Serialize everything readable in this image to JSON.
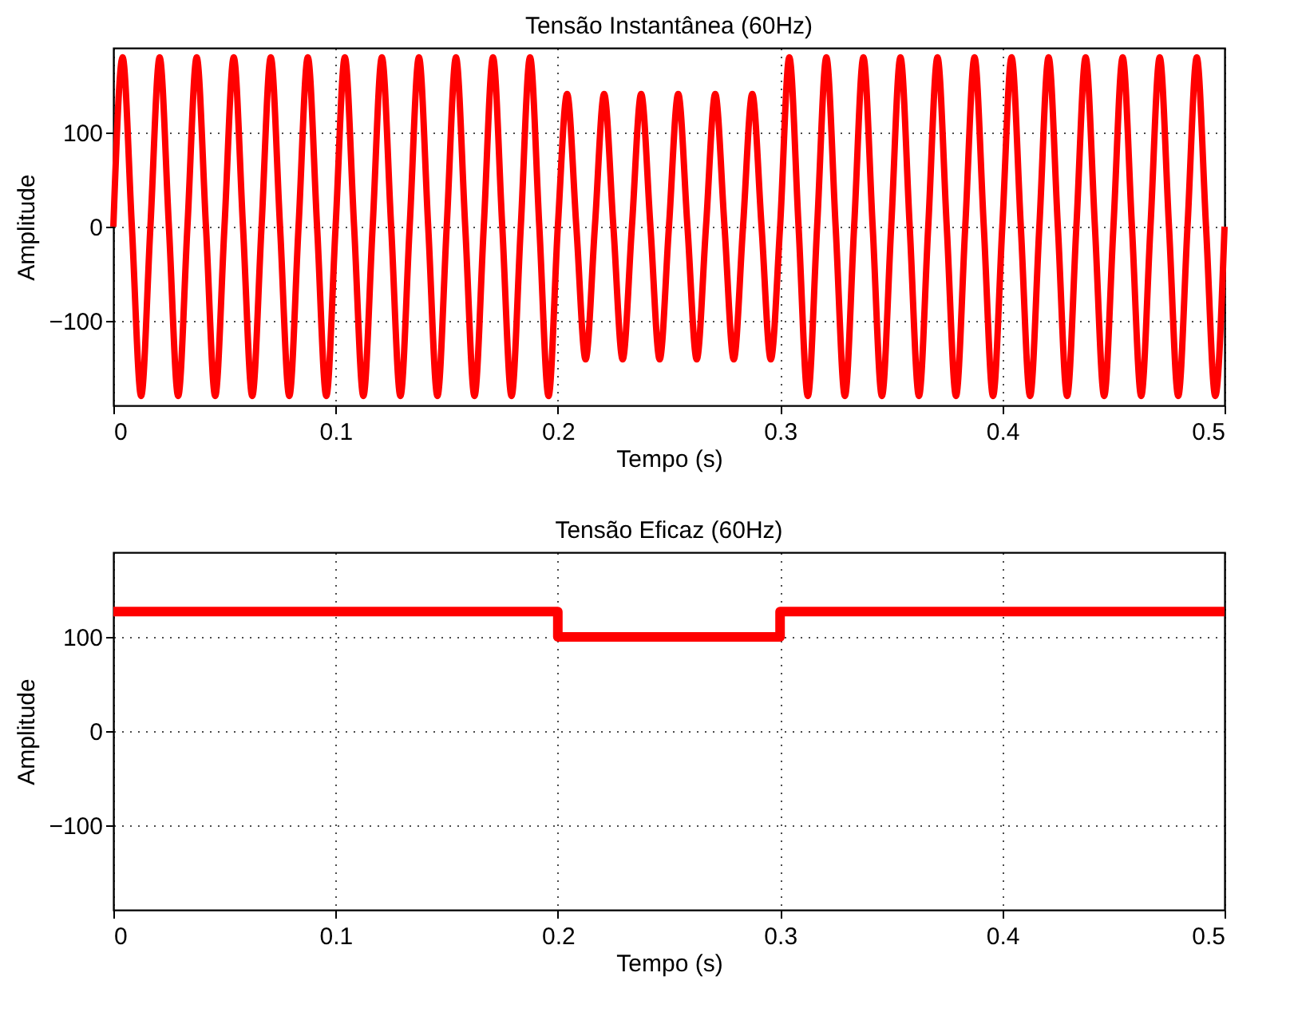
{
  "chart_data": [
    {
      "type": "line",
      "title": "Tensão Instantânea (60Hz)",
      "xlabel": "Tempo (s)",
      "ylabel": "Amplitude",
      "xlim": [
        0,
        0.5
      ],
      "xticks": [
        0,
        0.1,
        0.2,
        0.3,
        0.4,
        0.5
      ],
      "ylim": [
        -190,
        190
      ],
      "yticks": [
        -100,
        0,
        100
      ],
      "grid": true,
      "line_style": "solid",
      "series": [
        {
          "color": "#ff0000",
          "x": [
            0,
            0.00417,
            0.00833,
            0.0125,
            0.01667,
            0.02083,
            0.025,
            0.02917,
            0.03333,
            0.0375,
            0.04167,
            0.04583,
            0.05,
            0.05417,
            0.05833,
            0.0625,
            0.06667,
            0.07083,
            0.075,
            0.07917,
            0.08333,
            0.0875,
            0.09167,
            0.09583,
            0.1,
            0.10417,
            0.10833,
            0.1125,
            0.11667,
            0.12083,
            0.125,
            0.12917,
            0.13333,
            0.1375,
            0.14167,
            0.14583,
            0.15,
            0.15417,
            0.15833,
            0.1625,
            0.16667,
            0.17083,
            0.175,
            0.17917,
            0.18333,
            0.1875,
            0.19167,
            0.19583,
            0.2,
            0.20417,
            0.20833,
            0.2125,
            0.21667,
            0.22083,
            0.225,
            0.22917,
            0.23333,
            0.2375,
            0.24167,
            0.24583,
            0.25,
            0.25417,
            0.25833,
            0.2625,
            0.26667,
            0.27083,
            0.275,
            0.27917,
            0.28333,
            0.2875,
            0.29167,
            0.29583,
            0.3,
            0.30417,
            0.30833,
            0.3125,
            0.31667,
            0.32083,
            0.325,
            0.32917,
            0.33333,
            0.3375,
            0.34167,
            0.34583,
            0.35,
            0.35417,
            0.35833,
            0.3625,
            0.36667,
            0.37083,
            0.375,
            0.37917,
            0.38333,
            0.3875,
            0.39167,
            0.39583,
            0.4,
            0.40417,
            0.40833,
            0.4125,
            0.41667,
            0.42083,
            0.425,
            0.42917,
            0.43333,
            0.4375,
            0.44167,
            0.44583,
            0.45,
            0.45417,
            0.45833,
            0.4625,
            0.46667,
            0.47083,
            0.475,
            0.47917,
            0.48333,
            0.4875,
            0.49167,
            0.49583,
            0.5
          ],
          "values": [
            0,
            180,
            0,
            -180,
            0,
            180,
            0,
            -180,
            0,
            180,
            0,
            -180,
            0,
            180,
            0,
            -180,
            0,
            180,
            0,
            -180,
            0,
            180,
            0,
            -180,
            0,
            180,
            0,
            -180,
            0,
            180,
            0,
            -180,
            0,
            180,
            0,
            -180,
            0,
            180,
            0,
            -180,
            0,
            180,
            0,
            -180,
            0,
            180,
            0,
            -180,
            0,
            141,
            0,
            -141,
            0,
            141,
            0,
            -141,
            0,
            141,
            0,
            -141,
            0,
            141,
            0,
            -141,
            0,
            141,
            0,
            -141,
            0,
            141,
            0,
            -141,
            0,
            180,
            0,
            -180,
            0,
            180,
            0,
            -180,
            0,
            180,
            0,
            -180,
            0,
            180,
            0,
            -180,
            0,
            180,
            0,
            -180,
            0,
            180,
            0,
            -180,
            0,
            180,
            0,
            -180,
            0,
            180,
            0,
            -180,
            0,
            180,
            0,
            -180,
            0,
            180,
            0,
            -180,
            0,
            180,
            0,
            -180,
            0,
            180,
            0,
            -180,
            0
          ]
        }
      ]
    },
    {
      "type": "step",
      "title": "Tensão Eficaz (60Hz)",
      "xlabel": "Tempo (s)",
      "ylabel": "Amplitude",
      "xlim": [
        0,
        0.5
      ],
      "xticks": [
        0,
        0.1,
        0.2,
        0.3,
        0.4,
        0.5
      ],
      "ylim": [
        -190,
        190
      ],
      "yticks": [
        -100,
        0,
        100
      ],
      "grid": true,
      "line_style": "solid",
      "series": [
        {
          "color": "#ff0000",
          "x": [
            0,
            0.2,
            0.3,
            0.5
          ],
          "values": [
            127,
            100,
            127,
            127
          ]
        }
      ]
    }
  ]
}
